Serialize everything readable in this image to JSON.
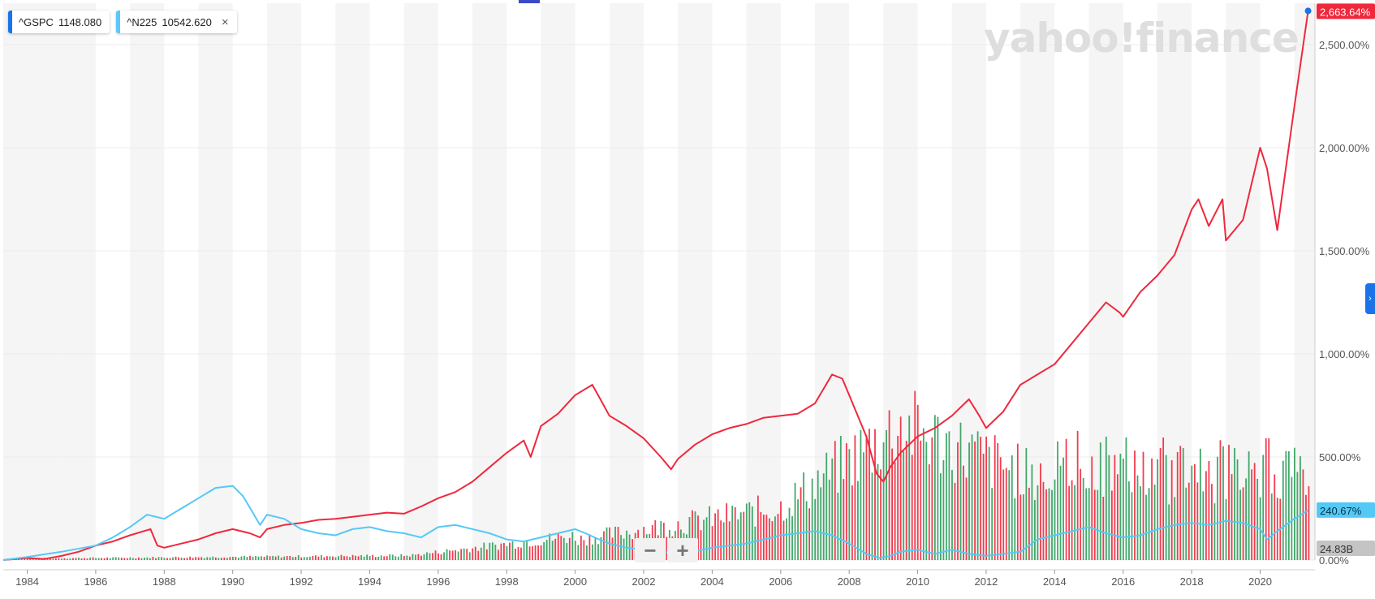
{
  "legend": {
    "items": [
      {
        "symbol": "^GSPC",
        "value": "1148.080",
        "color": "#1a73e8"
      },
      {
        "symbol": "^N225",
        "value": "10542.620",
        "color": "#5ac8fa"
      }
    ],
    "close_label": "×"
  },
  "watermark": "yahoo!finance",
  "zoom": {
    "minus": "−",
    "plus": "+"
  },
  "side_tab": "›",
  "colors": {
    "gspc_line": "#f0283c",
    "n225_line": "#55c9f5",
    "vol_up": "#2e9e5b",
    "vol_down": "#f0283c",
    "band": "#f5f5f5"
  },
  "chart_data": {
    "type": "line",
    "title": "",
    "xlabel": "",
    "ylabel": "",
    "x_ticks": [
      "1984",
      "1986",
      "1988",
      "1990",
      "1992",
      "1994",
      "1996",
      "1998",
      "2000",
      "2002",
      "2004",
      "2006",
      "2008",
      "2010",
      "2012",
      "2014",
      "2016",
      "2018",
      "2020"
    ],
    "y_ticks": [
      "0.00%",
      "500.00%",
      "1,000.00%",
      "1,500.00%",
      "2,000.00%",
      "2,500.00%"
    ],
    "ylim": [
      0,
      2700
    ],
    "xlim": [
      1983.3,
      2021.6
    ],
    "grid": "horizontal",
    "series": [
      {
        "name": "^GSPC",
        "last_label": "2,663.64%",
        "x": [
          1983.3,
          1984,
          1984.5,
          1985,
          1985.5,
          1986,
          1986.5,
          1987,
          1987.6,
          1987.8,
          1988,
          1988.5,
          1989,
          1989.5,
          1990,
          1990.5,
          1990.8,
          1991,
          1991.5,
          1992,
          1992.5,
          1993,
          1993.5,
          1994,
          1994.5,
          1995,
          1995.5,
          1996,
          1996.5,
          1997,
          1997.5,
          1998,
          1998.5,
          1998.7,
          1999,
          1999.5,
          2000,
          2000.5,
          2000.7,
          2001,
          2001.5,
          2002,
          2002.5,
          2002.8,
          2003,
          2003.5,
          2004,
          2004.5,
          2005,
          2005.5,
          2006,
          2006.5,
          2007,
          2007.5,
          2007.8,
          2008,
          2008.5,
          2008.8,
          2009,
          2009.2,
          2009.5,
          2010,
          2010.5,
          2011,
          2011.5,
          2011.8,
          2012,
          2012.5,
          2013,
          2013.5,
          2014,
          2014.5,
          2015,
          2015.5,
          2015.9,
          2016,
          2016.5,
          2017,
          2017.5,
          2018,
          2018.2,
          2018.5,
          2018.9,
          2019,
          2019.5,
          2020,
          2020.2,
          2020.5,
          2021,
          2021.4
        ],
        "values": [
          0,
          10,
          5,
          20,
          40,
          70,
          90,
          120,
          150,
          70,
          60,
          80,
          100,
          130,
          150,
          130,
          110,
          150,
          170,
          180,
          195,
          200,
          210,
          220,
          230,
          225,
          260,
          300,
          330,
          380,
          450,
          520,
          580,
          500,
          650,
          710,
          800,
          850,
          790,
          700,
          650,
          590,
          500,
          440,
          490,
          560,
          610,
          640,
          660,
          690,
          700,
          710,
          760,
          900,
          880,
          800,
          600,
          420,
          380,
          450,
          520,
          600,
          640,
          700,
          780,
          700,
          640,
          720,
          850,
          900,
          950,
          1050,
          1150,
          1250,
          1200,
          1180,
          1300,
          1380,
          1480,
          1700,
          1750,
          1620,
          1750,
          1550,
          1650,
          2000,
          1900,
          1600,
          2200,
          2663.64
        ]
      },
      {
        "name": "^N225",
        "last_label": "240.67%",
        "x": [
          1983.3,
          1984,
          1985,
          1986,
          1986.5,
          1987,
          1987.5,
          1988,
          1988.5,
          1989,
          1989.5,
          1990,
          1990.3,
          1990.8,
          1991,
          1991.5,
          1992,
          1992.5,
          1993,
          1993.5,
          1994,
          1994.5,
          1995,
          1995.5,
          1996,
          1996.5,
          1997,
          1997.5,
          1998,
          1998.5,
          1999,
          1999.5,
          2000,
          2000.3,
          2000.7,
          2001,
          2001.5,
          2002,
          2002.5,
          2003,
          2003.3,
          2003.7,
          2004,
          2004.5,
          2005,
          2005.5,
          2006,
          2006.5,
          2007,
          2007.5,
          2008,
          2008.5,
          2008.9,
          2009.2,
          2009.5,
          2010,
          2010.5,
          2011,
          2011.5,
          2012,
          2012.5,
          2013,
          2013.5,
          2014,
          2014.5,
          2015,
          2015.5,
          2016,
          2016.5,
          2017,
          2017.5,
          2018,
          2018.5,
          2019,
          2019.5,
          2020,
          2020.2,
          2020.5,
          2021,
          2021.4
        ],
        "values": [
          0,
          15,
          40,
          70,
          110,
          160,
          220,
          200,
          250,
          300,
          350,
          360,
          310,
          170,
          220,
          200,
          150,
          130,
          120,
          150,
          160,
          140,
          130,
          110,
          160,
          170,
          150,
          130,
          100,
          90,
          110,
          130,
          150,
          130,
          100,
          80,
          60,
          50,
          40,
          35,
          30,
          50,
          60,
          70,
          80,
          100,
          120,
          130,
          140,
          120,
          80,
          30,
          10,
          20,
          40,
          50,
          30,
          50,
          30,
          20,
          30,
          40,
          100,
          120,
          140,
          160,
          130,
          110,
          120,
          150,
          170,
          180,
          170,
          190,
          180,
          150,
          100,
          140,
          200,
          240.67
        ]
      }
    ],
    "volume": {
      "last_label": "24.83B",
      "note": "monthly volume bars, rising from near zero in 1984 to peaks around 2008-2009 and 2020"
    }
  }
}
